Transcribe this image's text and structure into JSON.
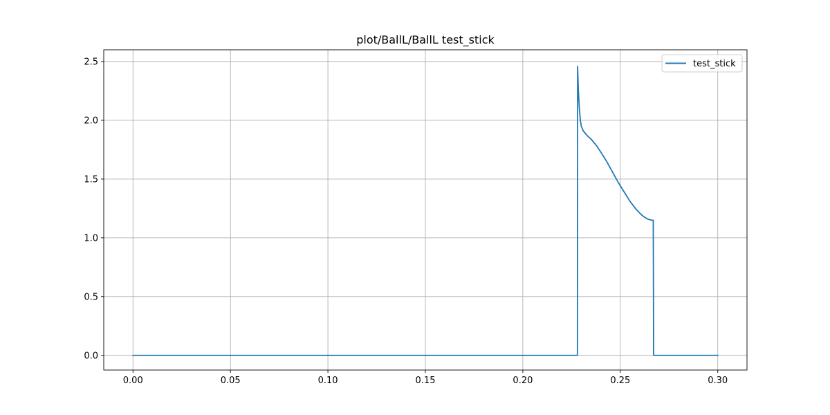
{
  "chart_data": {
    "type": "line",
    "title": "plot/BallL/BallL test_stick",
    "xlabel": "",
    "ylabel": "",
    "xlim": [
      -0.015,
      0.315
    ],
    "ylim": [
      -0.125,
      2.6
    ],
    "x_ticks": [
      0.0,
      0.05,
      0.1,
      0.15,
      0.2,
      0.25,
      0.3
    ],
    "x_tick_labels": [
      "0.00",
      "0.05",
      "0.10",
      "0.15",
      "0.20",
      "0.25",
      "0.30"
    ],
    "y_ticks": [
      0.0,
      0.5,
      1.0,
      1.5,
      2.0,
      2.5
    ],
    "y_tick_labels": [
      "0.0",
      "0.5",
      "1.0",
      "1.5",
      "2.0",
      "2.5"
    ],
    "grid": true,
    "legend_position": "top-right",
    "series": [
      {
        "name": "test_stick",
        "color": "#1f77b4",
        "x": [
          0.0,
          0.228,
          0.2281,
          0.2285,
          0.229,
          0.2295,
          0.23,
          0.231,
          0.232,
          0.233,
          0.235,
          0.238,
          0.24,
          0.243,
          0.246,
          0.249,
          0.252,
          0.255,
          0.258,
          0.26,
          0.262,
          0.264,
          0.266,
          0.2669,
          0.2671,
          0.3
        ],
        "y": [
          0.0,
          0.0,
          2.46,
          2.25,
          2.1,
          2.0,
          1.95,
          1.91,
          1.89,
          1.87,
          1.84,
          1.78,
          1.73,
          1.65,
          1.56,
          1.47,
          1.39,
          1.31,
          1.245,
          1.21,
          1.18,
          1.16,
          1.15,
          1.15,
          0.0,
          0.0
        ]
      }
    ]
  }
}
